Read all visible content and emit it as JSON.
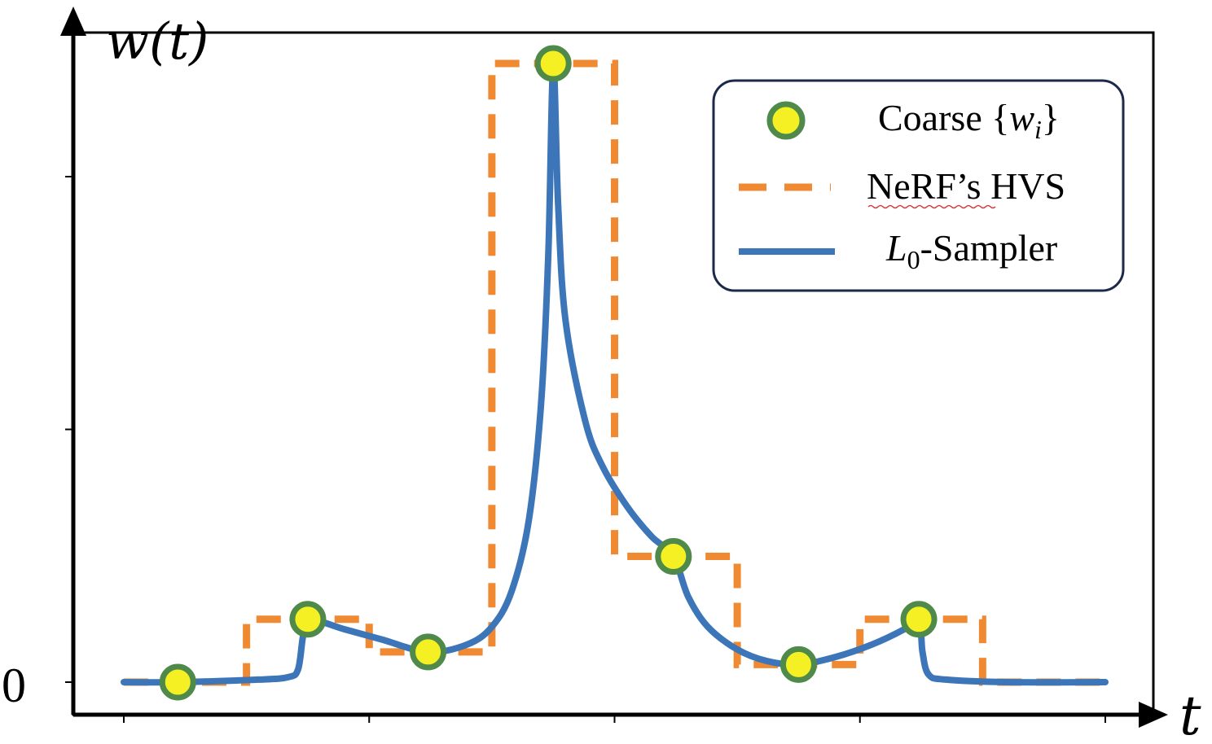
{
  "chart_data": {
    "type": "line",
    "ylabel": "w(t)",
    "xlabel": "t",
    "zero_label": "0",
    "xlim": [
      0,
      4
    ],
    "ylim": [
      -0.05,
      1.25
    ],
    "legend": {
      "placement": "top-right",
      "entries": [
        {
          "key": "coarse",
          "text": "Coarse {",
          "math": "w",
          "sub": "i",
          "suffix": "}"
        },
        {
          "key": "hvs",
          "text": "NeRF’s HVS"
        },
        {
          "key": "l0",
          "math": "L",
          "sub": "0",
          "text": "-Sampler"
        }
      ]
    },
    "colors": {
      "coarse_fill": "#f5f023",
      "coarse_stroke": "#4f8a4a",
      "hvs": "#ef8a33",
      "l0": "#3d76b8",
      "axis": "#000000"
    },
    "coarse_points": [
      {
        "x": 0.22,
        "y": 0.0
      },
      {
        "x": 0.75,
        "y": 0.125
      },
      {
        "x": 1.24,
        "y": 0.06
      },
      {
        "x": 1.75,
        "y": 1.23
      },
      {
        "x": 2.24,
        "y": 0.25
      },
      {
        "x": 2.75,
        "y": 0.035
      },
      {
        "x": 3.24,
        "y": 0.125
      }
    ],
    "hvs_steps": [
      {
        "x0": 0.0,
        "x1": 0.5,
        "y": 0.0
      },
      {
        "x0": 0.5,
        "x1": 1.0,
        "y": 0.125
      },
      {
        "x0": 1.0,
        "x1": 1.5,
        "y": 0.06
      },
      {
        "x0": 1.5,
        "x1": 2.0,
        "y": 1.23
      },
      {
        "x0": 2.0,
        "x1": 2.5,
        "y": 0.25
      },
      {
        "x0": 2.5,
        "x1": 3.0,
        "y": 0.035
      },
      {
        "x0": 3.0,
        "x1": 3.5,
        "y": 0.125
      },
      {
        "x0": 3.5,
        "x1": 4.0,
        "y": 0.0
      }
    ],
    "l0_curve": [
      [
        0.0,
        0.0
      ],
      [
        0.22,
        0.0
      ],
      [
        0.55,
        0.005
      ],
      [
        0.67,
        0.01
      ],
      [
        0.71,
        0.025
      ],
      [
        0.73,
        0.09
      ],
      [
        0.75,
        0.125
      ],
      [
        0.9,
        0.105
      ],
      [
        1.05,
        0.085
      ],
      [
        1.24,
        0.06
      ],
      [
        1.4,
        0.075
      ],
      [
        1.5,
        0.11
      ],
      [
        1.58,
        0.18
      ],
      [
        1.65,
        0.32
      ],
      [
        1.7,
        0.55
      ],
      [
        1.73,
        0.85
      ],
      [
        1.75,
        1.23
      ],
      [
        1.77,
        0.95
      ],
      [
        1.8,
        0.72
      ],
      [
        1.88,
        0.52
      ],
      [
        1.95,
        0.43
      ],
      [
        2.05,
        0.35
      ],
      [
        2.15,
        0.29
      ],
      [
        2.24,
        0.25
      ],
      [
        2.3,
        0.17
      ],
      [
        2.38,
        0.11
      ],
      [
        2.5,
        0.065
      ],
      [
        2.62,
        0.042
      ],
      [
        2.75,
        0.035
      ],
      [
        2.9,
        0.05
      ],
      [
        3.05,
        0.075
      ],
      [
        3.18,
        0.105
      ],
      [
        3.24,
        0.125
      ],
      [
        3.255,
        0.06
      ],
      [
        3.28,
        0.015
      ],
      [
        3.35,
        0.005
      ],
      [
        3.6,
        0.0
      ],
      [
        4.0,
        0.0
      ]
    ]
  }
}
